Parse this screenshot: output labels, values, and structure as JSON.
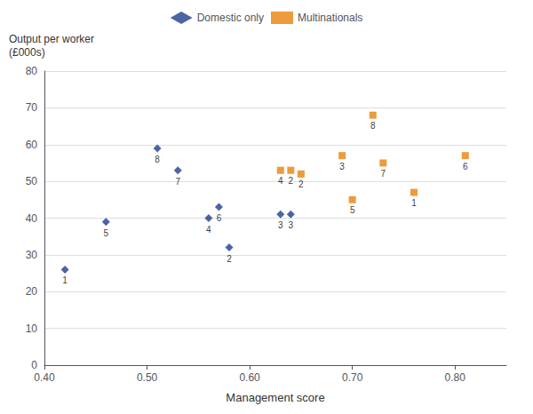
{
  "chart_data": {
    "type": "scatter",
    "xlabel": "Management score",
    "ylabel": [
      "Output per worker",
      "(£000s)"
    ],
    "xlim": [
      0.4,
      0.85
    ],
    "xticks": [
      {
        "value": 0.4,
        "label": "0.40"
      },
      {
        "value": 0.5,
        "label": "0.50"
      },
      {
        "value": 0.6,
        "label": "0.60"
      },
      {
        "value": 0.7,
        "label": "0.70"
      },
      {
        "value": 0.8,
        "label": "0.80"
      }
    ],
    "ylim": [
      0,
      80
    ],
    "yticks": [
      0,
      10,
      20,
      30,
      40,
      50,
      60,
      70,
      80
    ],
    "grid": "y",
    "legend": "top",
    "series": [
      {
        "name": "Domestic only",
        "color": "#1f3d8c",
        "marker": "diamond",
        "x": [
          0.42,
          0.46,
          0.51,
          0.53,
          0.56,
          0.57,
          0.58,
          0.63,
          0.64
        ],
        "values": [
          26,
          39,
          59,
          53,
          40,
          43,
          32,
          41,
          41
        ],
        "labels": [
          "1",
          "5",
          "8",
          "7",
          "4",
          "6",
          "2",
          "3",
          "3"
        ]
      },
      {
        "name": "Multinationals",
        "color": "#e8820c",
        "marker": "square",
        "x": [
          0.63,
          0.64,
          0.65,
          0.69,
          0.7,
          0.72,
          0.73,
          0.76,
          0.81
        ],
        "values": [
          53,
          53,
          52,
          57,
          45,
          68,
          55,
          47,
          57
        ],
        "labels": [
          "4",
          "2",
          "2",
          "3",
          "5",
          "8",
          "7",
          "1",
          "6"
        ]
      }
    ]
  }
}
